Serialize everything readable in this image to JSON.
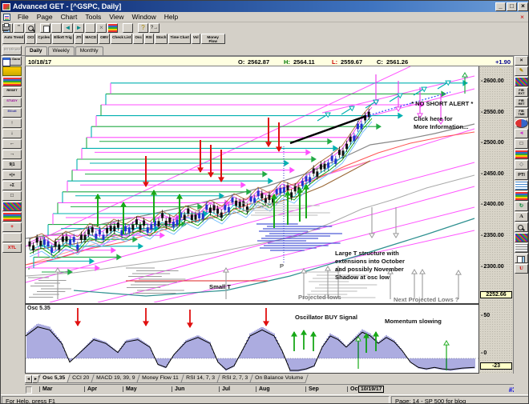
{
  "window": {
    "title": "Advanced GET - [^GSPC, Daily]"
  },
  "menu": {
    "items": [
      "File",
      "Page",
      "Chart",
      "Tools",
      "View",
      "Window",
      "Help"
    ]
  },
  "toolbar_studies": [
    "Auto Trend",
    "OCI",
    "Cycles",
    "Elliott Trig",
    "JTI",
    "MACD",
    "OBV",
    "Check List",
    "Osc",
    "RSI",
    "Stoch",
    "Time Clust",
    "Vol",
    "Money Flow"
  ],
  "period_bar": {
    "minute_button": "60 Minute",
    "tabs": [
      "Daily",
      "Weekly",
      "Monthly"
    ]
  },
  "quote_bar": {
    "date": "10/18/17",
    "open_label": "O:",
    "open": "2562.87",
    "high_label": "H:",
    "high": "2564.11",
    "low_label": "L:",
    "low": "2559.67",
    "close_label": "C:",
    "close": "2561.26",
    "change": "+1.90"
  },
  "price_axis": {
    "ticks": [
      "2600.00",
      "2550.00",
      "2500.00",
      "2450.00",
      "2400.00",
      "2350.00",
      "2300.00"
    ],
    "last_price": "2252.66"
  },
  "chart_annotations": {
    "no_short_alert": "* NO SHORT ALERT *",
    "click_here": "Click here for\nMore Information...",
    "large_t": "Large T structure with\nextensions into October\nand possibly November\nShadow at osc low",
    "small_t": "Small T",
    "projected_lows": "Projected lows",
    "next_projected_lows": "Next Projected Lows ?",
    "p_marker": "P"
  },
  "oscillator": {
    "label": "Osc 5.35",
    "buy_signal": "Oscillator BUY Signal",
    "momentum": "Momentum slowing",
    "axis_ticks": [
      "50",
      "0"
    ],
    "last_value": "-23"
  },
  "indicator_tabs": [
    "Osc 5,35",
    "CCI 20",
    "MACD 19, 39, 9",
    "Money Flow 11",
    "RSI 14, 7, 3",
    "RSI 2, 7, 3",
    "On Balance Volume"
  ],
  "x_axis": {
    "months": [
      "Mar",
      "Apr",
      "May",
      "Jun",
      "Jul",
      "Aug",
      "Sep",
      "Oct"
    ],
    "end_date": "10/19/17"
  },
  "status_bar": {
    "help": "For Help, press F1",
    "page": "Page: 14 - SP 500 for blog",
    "chart_id": "#3001"
  },
  "icons": {
    "minimize": "_",
    "maximize": "□",
    "close": "×",
    "mdi_close": "×",
    "quotes": "”",
    "prev": "◄",
    "next": "►",
    "delete": "×",
    "help": "?",
    "context_help": "?→",
    "up": "↑",
    "down": "↓",
    "left": "←",
    "right": "→",
    "box": "□",
    "waves": "ΛΛ",
    "ratio": "9|1",
    "plus_bars": "+|+",
    "sum": "÷Σ",
    "cross": "+",
    "xtl": "XTL",
    "reset": "RESET",
    "study": "STUDY",
    "elliott": "Elliott",
    "pencil": "✎",
    "text_tool": "A",
    "undo": "U",
    "pti": "PTI",
    "diamond": "◇",
    "arrows": "◄",
    "refresh": "↻",
    "fib_ext": "FIB EXT",
    "fib_ret": "FIB RET",
    "fib_time": "FIB TME",
    "auto_gann": "Auto Gann",
    "delete_tool": "×"
  },
  "colors": {
    "up_arrow": "#18a818",
    "down_arrow": "#e01010",
    "staircase_magenta": "#ff4fff",
    "staircase_green": "#22aa44",
    "staircase_teal": "#00b0b0",
    "histogram": "#4646bb",
    "quote_bg": "#ffffe1",
    "change": "#000090"
  }
}
